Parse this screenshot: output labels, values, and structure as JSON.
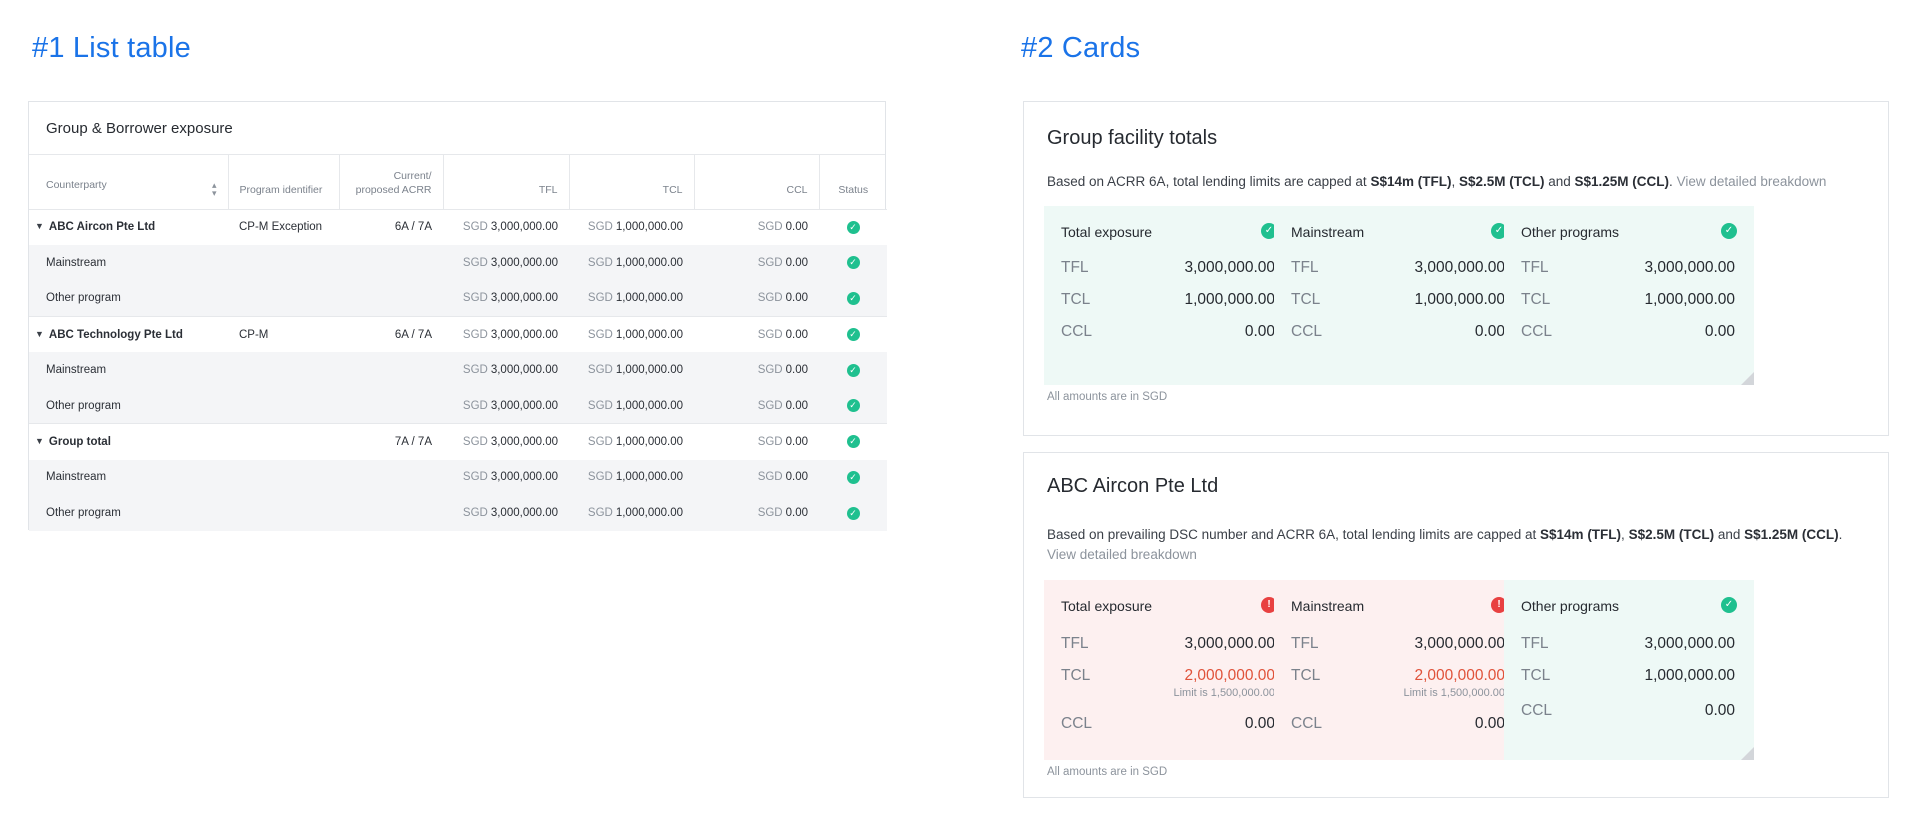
{
  "sections": {
    "table_title": "#1 List table",
    "cards_title": "#2 Cards"
  },
  "table": {
    "title": "Group & Borrower exposure",
    "headers": {
      "counterparty": "Counterparty",
      "program": "Program identifier",
      "acrr_line1": "Current/",
      "acrr_line2": "proposed ACRR",
      "tfl": "TFL",
      "tcl": "TCL",
      "ccl": "CCL",
      "status": "Status"
    },
    "currency": "SGD",
    "rows": [
      {
        "type": "group",
        "counterparty": "ABC Aircon Pte Ltd",
        "program": "CP-M Exception",
        "acrr": "6A / 7A",
        "tfl": "3,000,000.00",
        "tcl": "1,000,000.00",
        "ccl": "0.00"
      },
      {
        "type": "sub",
        "counterparty": "Mainstream",
        "program": "",
        "acrr": "",
        "tfl": "3,000,000.00",
        "tcl": "1,000,000.00",
        "ccl": "0.00"
      },
      {
        "type": "sub",
        "counterparty": "Other program",
        "program": "",
        "acrr": "",
        "tfl": "3,000,000.00",
        "tcl": "1,000,000.00",
        "ccl": "0.00"
      },
      {
        "type": "group",
        "counterparty": "ABC Technology Pte Ltd",
        "program": "CP-M",
        "acrr": "6A / 7A",
        "tfl": "3,000,000.00",
        "tcl": "1,000,000.00",
        "ccl": "0.00"
      },
      {
        "type": "sub",
        "counterparty": "Mainstream",
        "program": "",
        "acrr": "",
        "tfl": "3,000,000.00",
        "tcl": "1,000,000.00",
        "ccl": "0.00"
      },
      {
        "type": "sub",
        "counterparty": "Other program",
        "program": "",
        "acrr": "",
        "tfl": "3,000,000.00",
        "tcl": "1,000,000.00",
        "ccl": "0.00"
      },
      {
        "type": "group",
        "counterparty": "Group total",
        "program": "",
        "acrr": "7A / 7A",
        "tfl": "3,000,000.00",
        "tcl": "1,000,000.00",
        "ccl": "0.00"
      },
      {
        "type": "sub",
        "counterparty": "Mainstream",
        "program": "",
        "acrr": "",
        "tfl": "3,000,000.00",
        "tcl": "1,000,000.00",
        "ccl": "0.00"
      },
      {
        "type": "sub",
        "counterparty": "Other program",
        "program": "",
        "acrr": "",
        "tfl": "3,000,000.00",
        "tcl": "1,000,000.00",
        "ccl": "0.00"
      }
    ]
  },
  "panel1": {
    "title": "Group facility totals",
    "desc_prefix": "Based on ACRR 6A, total lending limits are capped at ",
    "limit_tfl": "S$14m (TFL)",
    "sep1": ", ",
    "limit_tcl": "S$2.5M (TCL)",
    "sep2": " and ",
    "limit_ccl": "S$1.25M (CCL)",
    "sep3": ". ",
    "link": "View detailed breakdown",
    "note": "All amounts are in SGD",
    "cards": [
      {
        "title": "Total exposure",
        "status": "ok",
        "tfl": "3,000,000.00",
        "tcl": "1,000,000.00",
        "ccl": "0.00"
      },
      {
        "title": "Mainstream",
        "status": "ok",
        "tfl": "3,000,000.00",
        "tcl": "1,000,000.00",
        "ccl": "0.00"
      },
      {
        "title": "Other programs",
        "status": "ok",
        "tfl": "3,000,000.00",
        "tcl": "1,000,000.00",
        "ccl": "0.00"
      }
    ]
  },
  "panel2": {
    "title": "ABC Aircon Pte Ltd",
    "desc_prefix": "Based on prevailing DSC number and ACRR 6A, total lending limits are capped at ",
    "limit_tfl": "S$14m (TFL)",
    "sep1": ", ",
    "limit_tcl": "S$2.5M (TCL)",
    "sep2": " and ",
    "limit_ccl": "S$1.25M (CCL)",
    "sep3": ".",
    "link": "View detailed breakdown",
    "note": "All amounts are in SGD",
    "cards": [
      {
        "title": "Total exposure",
        "status": "warning",
        "tfl": "3,000,000.00",
        "tcl": "2,000,000.00",
        "tcl_limit": "Limit is 1,500,000.00",
        "ccl": "0.00"
      },
      {
        "title": "Mainstream",
        "status": "warning",
        "tfl": "3,000,000.00",
        "tcl": "2,000,000.00",
        "tcl_limit": "Limit is 1,500,000.00",
        "ccl": "0.00"
      },
      {
        "title": "Other programs",
        "status": "ok",
        "tfl": "3,000,000.00",
        "tcl": "1,000,000.00",
        "ccl": "0.00"
      }
    ]
  },
  "labels": {
    "tfl": "TFL",
    "tcl": "TCL",
    "ccl": "CCL"
  },
  "icons": {
    "ok": "check-circle-icon",
    "warning": "exclamation-circle-icon",
    "expand": "caret-down-icon",
    "sort": "sort-icon"
  },
  "colors": {
    "accent": "#1a73e8",
    "ok": "#1fc08f",
    "warning": "#e84141",
    "warn_text": "#e0523a",
    "ok_bg": "#eef9f6",
    "warn_bg": "#fdf0f0"
  }
}
